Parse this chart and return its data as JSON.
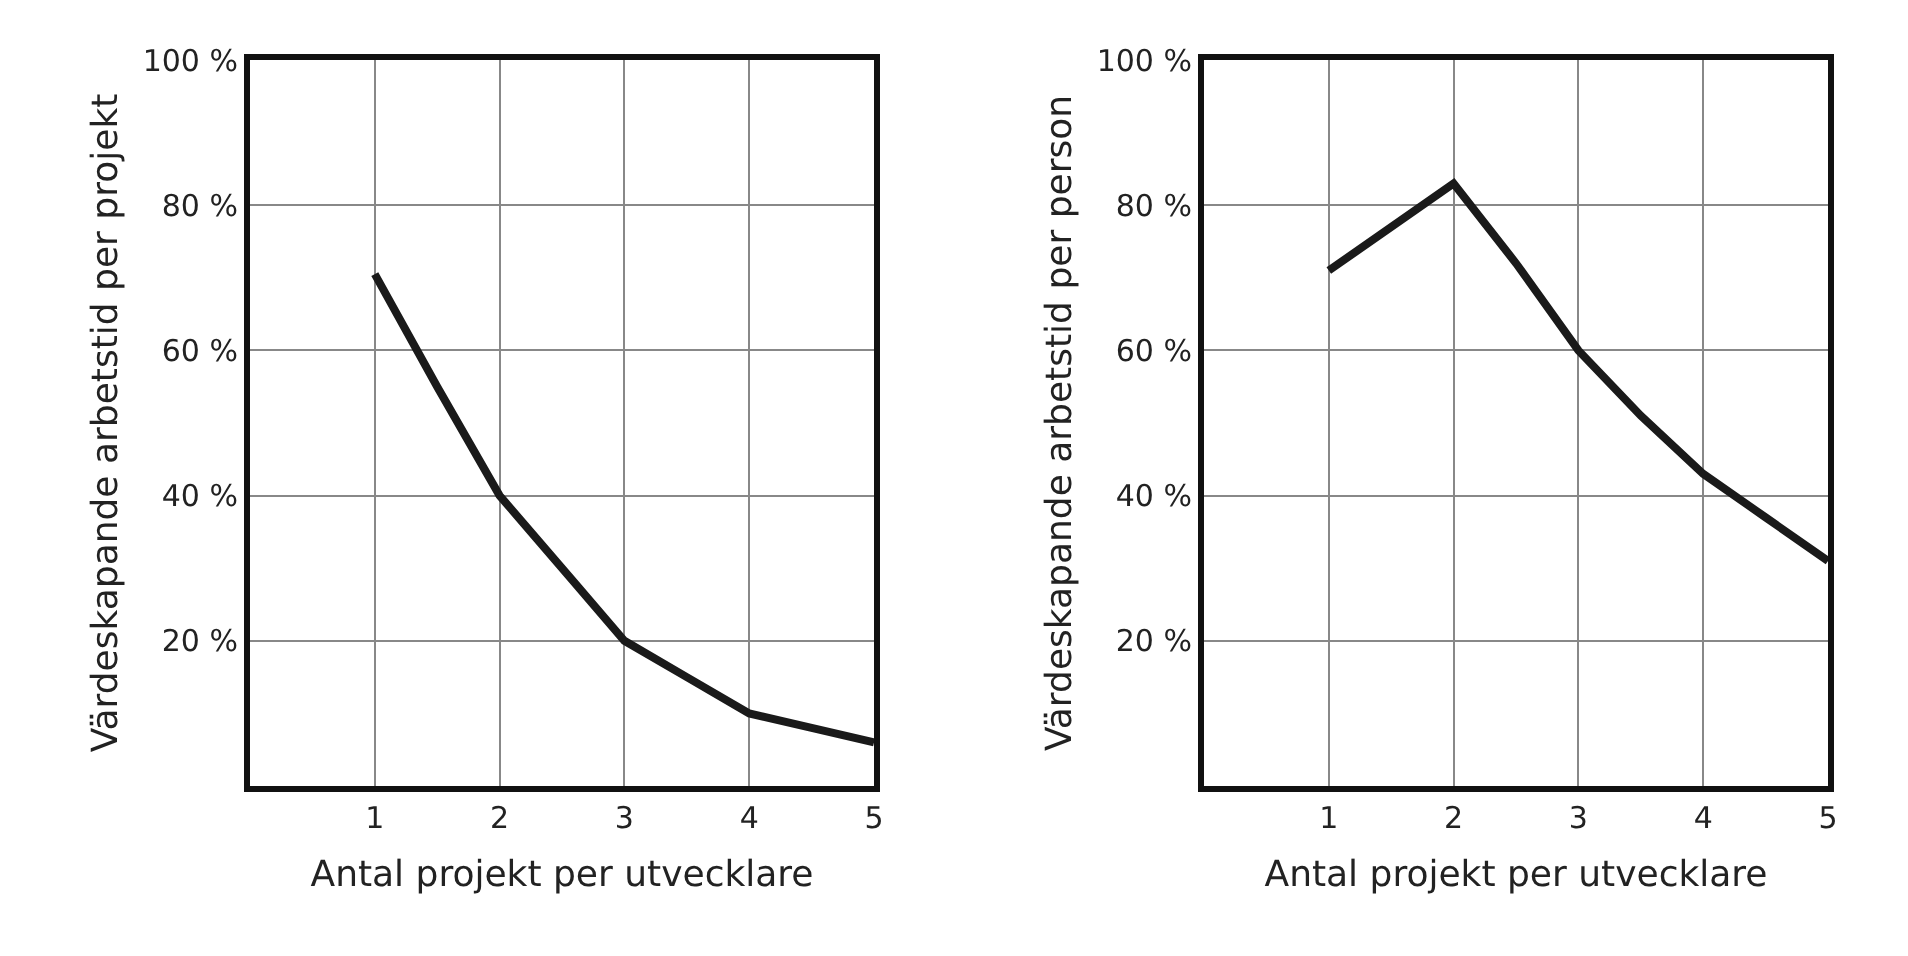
{
  "chart_data": [
    {
      "type": "line",
      "xlabel": "Antal projekt per utvecklare",
      "ylabel": "Värdeskapande arbetstid per projekt",
      "x": [
        1,
        1.5,
        2,
        2.3,
        2.6,
        3,
        3.5,
        4,
        4.5,
        5
      ],
      "values": [
        70.5,
        55,
        40,
        34,
        28,
        20,
        15,
        10,
        8,
        6
      ],
      "color": "#1a1a1a",
      "xlim": [
        0,
        5
      ],
      "xticks": [
        1,
        2,
        3,
        4,
        5
      ],
      "ylim": [
        0,
        100
      ],
      "yticks": [
        {
          "value": 20,
          "label": "20 %"
        },
        {
          "value": 40,
          "label": "40 %"
        },
        {
          "value": 60,
          "label": "60 %"
        },
        {
          "value": 80,
          "label": "80 %"
        },
        {
          "value": 100,
          "label": "100 %"
        }
      ],
      "grid": true,
      "marker": "none",
      "line_style": "solid"
    },
    {
      "type": "line",
      "xlabel": "Antal projekt per utvecklare",
      "ylabel": "Värdeskapande arbetstid per person",
      "x": [
        1,
        2,
        2.5,
        3,
        3.5,
        4,
        4.5,
        5
      ],
      "values": [
        71,
        83,
        72,
        60,
        51,
        43,
        37,
        31
      ],
      "color": "#1a1a1a",
      "xlim": [
        0,
        5
      ],
      "xticks": [
        1,
        2,
        3,
        4,
        5
      ],
      "ylim": [
        0,
        100
      ],
      "yticks": [
        {
          "value": 20,
          "label": "20 %"
        },
        {
          "value": 40,
          "label": "40 %"
        },
        {
          "value": 60,
          "label": "60 %"
        },
        {
          "value": 80,
          "label": "80 %"
        },
        {
          "value": 100,
          "label": "100 %"
        }
      ],
      "grid": true,
      "marker": "none",
      "line_style": "solid"
    }
  ]
}
